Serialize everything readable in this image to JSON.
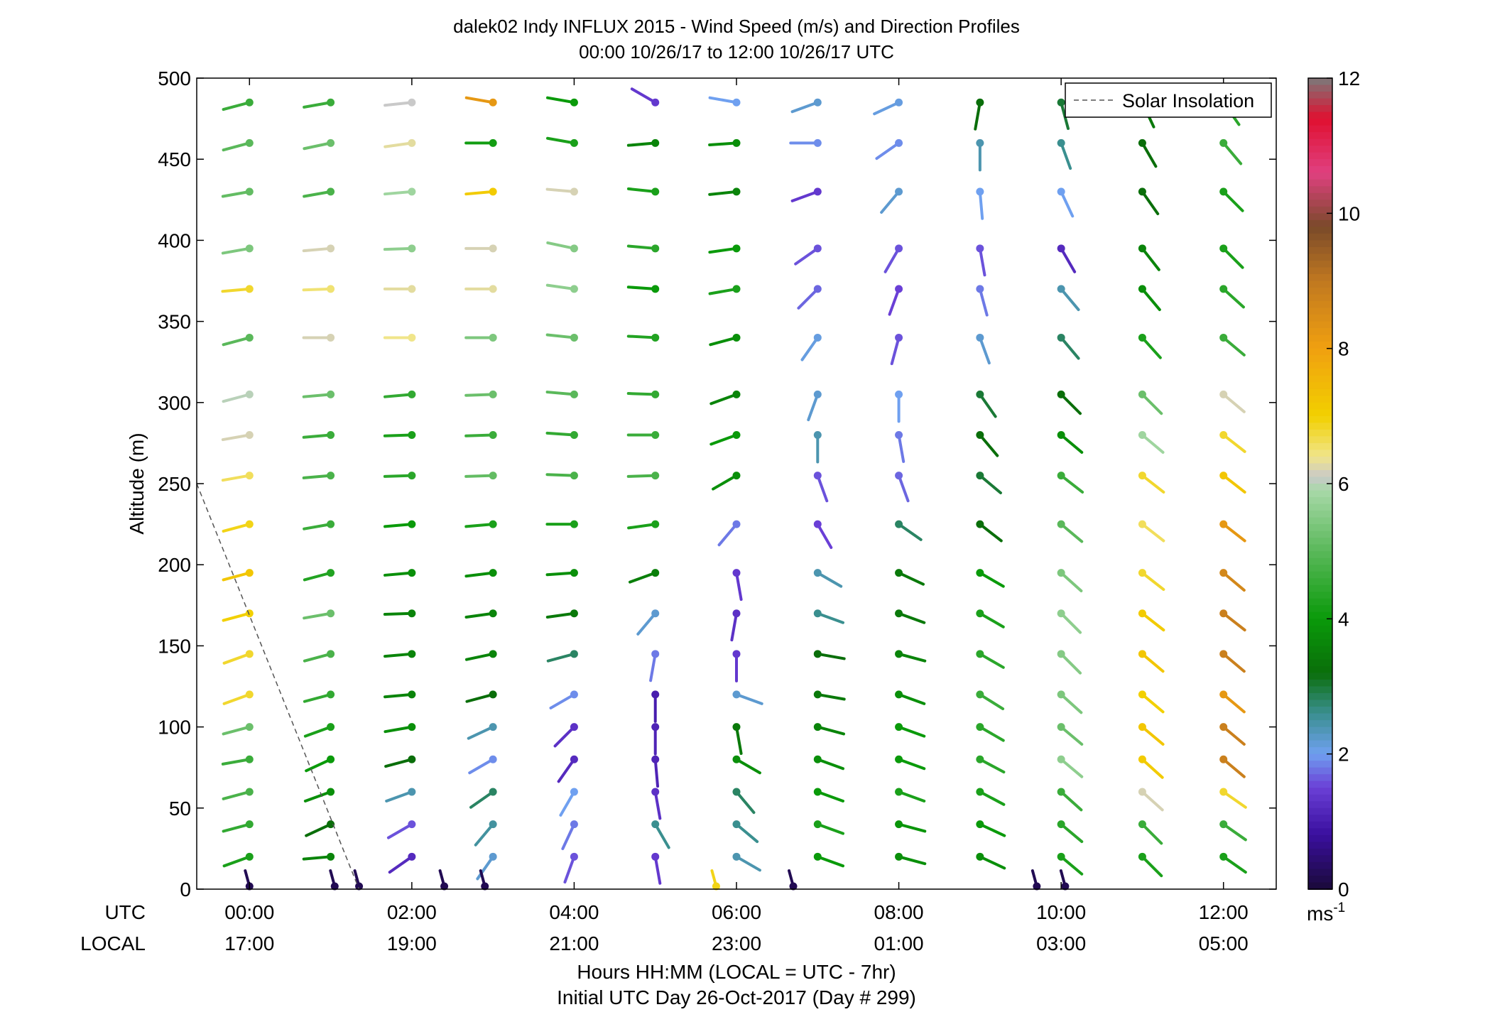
{
  "chart_data": {
    "type": "scatter",
    "title": "dalek02 Indy INFLUX 2015 - Wind Speed (m/s) and Direction Profiles",
    "subtitle": "00:00 10/26/17 to 12:00 10/26/17  UTC",
    "ylabel": "Altitude (m)",
    "xlabel": "Hours HH:MM  (LOCAL = UTC - 7hr)",
    "xlabel2": "Initial UTC Day 26-Oct-2017 (Day # 299)",
    "x_row_labels": {
      "utc": "UTC",
      "local": "LOCAL"
    },
    "x_tick_labels_utc": [
      "00:00",
      "02:00",
      "04:00",
      "06:00",
      "08:00",
      "10:00",
      "12:00"
    ],
    "x_tick_labels_local": [
      "17:00",
      "19:00",
      "21:00",
      "23:00",
      "01:00",
      "03:00",
      "05:00"
    ],
    "y_ticks": [
      0,
      50,
      100,
      150,
      200,
      250,
      300,
      350,
      400,
      450,
      500
    ],
    "ylim": [
      0,
      500
    ],
    "xlim_hours": [
      -0.65,
      12.65
    ],
    "legend": {
      "entries": [
        "Solar Insolation"
      ],
      "placement": "top-right"
    },
    "colorbar": {
      "ticks": [
        0,
        2,
        4,
        6,
        8,
        10,
        12
      ],
      "range": [
        0,
        12
      ],
      "unit_base": "ms",
      "unit_exp": "-1"
    },
    "solar_insolation": {
      "x": [
        -0.65,
        1.35
      ],
      "y": [
        250,
        0
      ],
      "style": "dashed"
    },
    "altitudes": [
      20,
      40,
      60,
      80,
      100,
      120,
      145,
      170,
      195,
      225,
      255,
      280,
      305,
      340,
      370,
      395,
      430,
      460,
      485
    ],
    "wind_profiles": [
      {
        "t": 0.0,
        "speed": [
          4.2,
          4.5,
          4.8,
          4.6,
          5.2,
          6.8,
          6.8,
          7.0,
          7.2,
          6.9,
          6.6,
          6.2,
          6.0,
          5.0,
          6.8,
          5.4,
          5.1,
          5.0,
          4.6
        ],
        "dir": [
          250,
          255,
          255,
          260,
          255,
          250,
          250,
          255,
          255,
          255,
          260,
          260,
          255,
          255,
          265,
          260,
          260,
          255,
          255
        ]
      },
      {
        "t": 1.0,
        "speed": [
          3.6,
          3.2,
          3.8,
          4.0,
          4.2,
          4.5,
          4.8,
          5.2,
          4.3,
          4.6,
          4.8,
          4.6,
          5.2,
          6.2,
          6.5,
          6.2,
          4.8,
          5.2,
          4.6
        ],
        "dir": [
          265,
          245,
          250,
          245,
          250,
          255,
          255,
          260,
          255,
          260,
          265,
          265,
          265,
          270,
          268,
          265,
          260,
          258,
          260
        ]
      },
      {
        "t": 2.0,
        "speed": [
          1.2,
          1.6,
          2.4,
          3.2,
          3.8,
          3.6,
          3.6,
          3.6,
          3.8,
          4.0,
          4.4,
          4.2,
          4.5,
          6.4,
          6.3,
          5.6,
          5.8,
          6.3,
          6.1
        ],
        "dir": [
          235,
          240,
          250,
          255,
          260,
          265,
          265,
          268,
          265,
          265,
          268,
          268,
          265,
          270,
          270,
          268,
          265,
          262,
          264
        ]
      },
      {
        "t": 3.0,
        "speed": [
          2.2,
          2.5,
          2.8,
          1.9,
          2.4,
          3.2,
          3.6,
          3.6,
          3.8,
          4.2,
          5.1,
          4.6,
          5.2,
          5.4,
          6.3,
          6.2,
          7.1,
          4.1,
          8.2
        ],
        "dir": [
          215,
          220,
          235,
          240,
          245,
          255,
          258,
          262,
          263,
          265,
          268,
          268,
          268,
          270,
          270,
          270,
          265,
          270,
          280
        ]
      },
      {
        "t": 4.0,
        "speed": [
          1.6,
          1.8,
          2.0,
          1.2,
          1.3,
          1.9,
          2.8,
          3.4,
          3.8,
          4.2,
          4.8,
          4.5,
          5.0,
          5.2,
          5.6,
          5.5,
          6.2,
          4.2,
          4.0
        ],
        "dir": [
          200,
          205,
          210,
          215,
          225,
          240,
          255,
          262,
          266,
          270,
          272,
          274,
          275,
          276,
          278,
          282,
          275,
          280,
          280
        ]
      },
      {
        "t": 5.0,
        "speed": [
          1.4,
          2.6,
          1.3,
          1.1,
          1.1,
          1.0,
          1.8,
          2.2,
          3.5,
          4.2,
          4.8,
          4.6,
          4.5,
          4.3,
          4.0,
          4.4,
          4.2,
          3.6,
          1.4
        ],
        "dir": [
          170,
          150,
          170,
          175,
          180,
          180,
          190,
          220,
          250,
          262,
          268,
          270,
          272,
          273,
          274,
          275,
          276,
          265,
          300
        ]
      },
      {
        "t": 6.0,
        "speed": [
          2.4,
          2.6,
          2.8,
          3.8,
          3.4,
          2.2,
          1.4,
          1.3,
          1.4,
          1.8,
          3.8,
          4.0,
          3.6,
          3.8,
          4.2,
          4.0,
          3.6,
          3.8,
          2.0
        ],
        "dir": [
          120,
          130,
          140,
          120,
          170,
          110,
          180,
          190,
          170,
          220,
          240,
          250,
          250,
          255,
          260,
          262,
          264,
          266,
          280
        ]
      },
      {
        "t": 7.0,
        "speed": [
          4.0,
          4.2,
          4.0,
          3.8,
          3.6,
          3.4,
          3.2,
          2.6,
          2.4,
          1.5,
          1.6,
          2.4,
          2.2,
          2.1,
          1.7,
          1.6,
          1.4,
          1.9,
          2.2
        ],
        "dir": [
          110,
          110,
          110,
          110,
          105,
          100,
          100,
          110,
          120,
          150,
          160,
          180,
          200,
          215,
          225,
          235,
          250,
          270,
          250
        ]
      },
      {
        "t": 8.0,
        "speed": [
          3.8,
          3.9,
          4.2,
          4.0,
          4.0,
          3.8,
          3.6,
          3.4,
          3.4,
          2.8,
          1.7,
          1.8,
          2.0,
          1.6,
          1.5,
          1.6,
          2.2,
          1.9,
          2.1
        ],
        "dir": [
          105,
          105,
          110,
          110,
          110,
          110,
          105,
          110,
          115,
          125,
          160,
          170,
          180,
          195,
          200,
          210,
          220,
          235,
          245
        ]
      },
      {
        "t": 9.0,
        "speed": [
          3.8,
          4.0,
          4.2,
          4.4,
          4.4,
          4.6,
          4.4,
          4.2,
          4.0,
          3.2,
          3.0,
          3.2,
          3.0,
          2.2,
          1.8,
          1.6,
          2.0,
          2.4,
          3.2
        ],
        "dir": [
          115,
          115,
          118,
          118,
          120,
          122,
          120,
          120,
          120,
          128,
          130,
          140,
          145,
          160,
          165,
          170,
          175,
          180,
          190
        ]
      },
      {
        "t": 10.0,
        "speed": [
          4.2,
          4.4,
          4.6,
          5.6,
          5.2,
          5.4,
          5.5,
          5.6,
          5.4,
          5.0,
          4.6,
          3.8,
          3.2,
          2.8,
          2.4,
          1.2,
          2.0,
          2.6,
          3.0
        ],
        "dir": [
          130,
          130,
          132,
          130,
          130,
          132,
          135,
          135,
          132,
          130,
          128,
          130,
          135,
          140,
          140,
          150,
          155,
          160,
          165
        ]
      },
      {
        "t": 11.0,
        "speed": [
          4.2,
          4.6,
          6.2,
          7.1,
          7.2,
          7.0,
          7.2,
          7.1,
          6.8,
          6.6,
          6.8,
          5.8,
          5.2,
          4.2,
          3.8,
          3.6,
          3.2,
          3.2,
          3.4
        ],
        "dir": [
          135,
          135,
          132,
          132,
          130,
          130,
          130,
          128,
          128,
          128,
          128,
          130,
          135,
          138,
          140,
          142,
          145,
          150,
          155
        ]
      },
      {
        "t": 12.0,
        "speed": [
          4.2,
          4.6,
          6.8,
          8.8,
          8.8,
          8.2,
          8.8,
          8.8,
          8.6,
          8.2,
          7.2,
          6.8,
          6.2,
          4.6,
          4.4,
          4.2,
          4.2,
          4.6,
          4.4
        ],
        "dir": [
          125,
          125,
          125,
          130,
          130,
          130,
          130,
          128,
          130,
          128,
          128,
          128,
          130,
          130,
          132,
          135,
          135,
          140,
          145
        ]
      }
    ],
    "surface_points": [
      {
        "t": 0.0,
        "speed": 0.2
      },
      {
        "t": 1.05,
        "speed": 0.2
      },
      {
        "t": 1.35,
        "speed": 0.2
      },
      {
        "t": 2.4,
        "speed": 0.2
      },
      {
        "t": 2.9,
        "speed": 0.2
      },
      {
        "t": 5.75,
        "speed": 6.9
      },
      {
        "t": 6.7,
        "speed": 0.2
      },
      {
        "t": 9.7,
        "speed": 0.2
      },
      {
        "t": 10.05,
        "speed": 0.2
      }
    ]
  }
}
